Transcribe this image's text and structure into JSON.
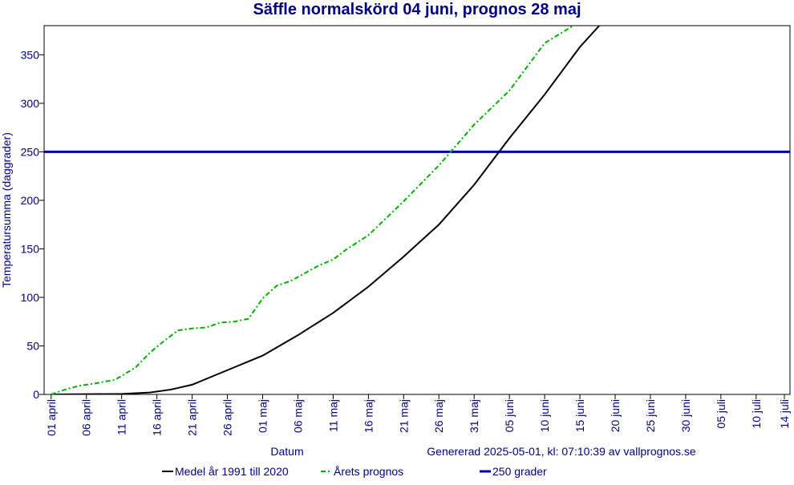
{
  "chart_data": {
    "type": "line",
    "title": "Säffle normalskörd 04 juni, prognos 28 maj",
    "ylabel": "Temperatursumma (daggrader)",
    "xlabel": "Datum",
    "note": "Genererad 2025-05-01, kl: 07:10:39 av vallprognos.se",
    "xlim": [
      -1,
      104.8
    ],
    "ylim": [
      0,
      380
    ],
    "yticks": [
      0,
      50,
      100,
      150,
      200,
      250,
      300,
      350
    ],
    "xticks": [
      {
        "value": 0,
        "label": "01 april"
      },
      {
        "value": 5,
        "label": "06 april"
      },
      {
        "value": 10,
        "label": "11 april"
      },
      {
        "value": 15,
        "label": "16 april"
      },
      {
        "value": 20,
        "label": "21 april"
      },
      {
        "value": 25,
        "label": "26 april"
      },
      {
        "value": 30,
        "label": "01 maj"
      },
      {
        "value": 35,
        "label": "06 maj"
      },
      {
        "value": 40,
        "label": "11 maj"
      },
      {
        "value": 45,
        "label": "16 maj"
      },
      {
        "value": 50,
        "label": "21 maj"
      },
      {
        "value": 55,
        "label": "26 maj"
      },
      {
        "value": 60,
        "label": "31 maj"
      },
      {
        "value": 65,
        "label": "05 juni"
      },
      {
        "value": 70,
        "label": "10 juni"
      },
      {
        "value": 75,
        "label": "15 juni"
      },
      {
        "value": 80,
        "label": "20 juni"
      },
      {
        "value": 85,
        "label": "25 juni"
      },
      {
        "value": 90,
        "label": "30 juni"
      },
      {
        "value": 95,
        "label": "05 juli"
      },
      {
        "value": 100,
        "label": "10 juli"
      },
      {
        "value": 104,
        "label": "14 juli"
      }
    ],
    "series": [
      {
        "name": "Medel år 1991 till 2020",
        "color": "#000000",
        "dash": "solid",
        "x": [
          0,
          10,
          14,
          17,
          20,
          25,
          30,
          35,
          40,
          45,
          50,
          55,
          60,
          65,
          70,
          75,
          78
        ],
        "values": [
          0,
          0.5,
          2,
          5,
          10,
          25,
          40,
          61,
          84,
          111,
          142,
          175,
          216,
          264,
          309,
          358,
          382
        ]
      },
      {
        "name": "Årets prognos",
        "color": "#00b000",
        "dash": "dashdot",
        "x": [
          0,
          2,
          4,
          6,
          9,
          10,
          12,
          14,
          16,
          18,
          20,
          22,
          24,
          26,
          28,
          30,
          32,
          34,
          36,
          38,
          40,
          42,
          45,
          50,
          55,
          60,
          65,
          70,
          74.5
        ],
        "values": [
          0,
          5,
          9,
          11,
          15,
          19,
          28,
          43,
          55,
          66,
          68,
          69,
          74,
          75,
          78,
          99,
          112,
          117,
          125,
          133,
          139,
          150,
          164,
          199,
          236,
          278,
          313,
          362,
          382
        ]
      }
    ],
    "reference_line": {
      "name": "250 grader",
      "value": 250,
      "color": "#0000a0"
    }
  }
}
